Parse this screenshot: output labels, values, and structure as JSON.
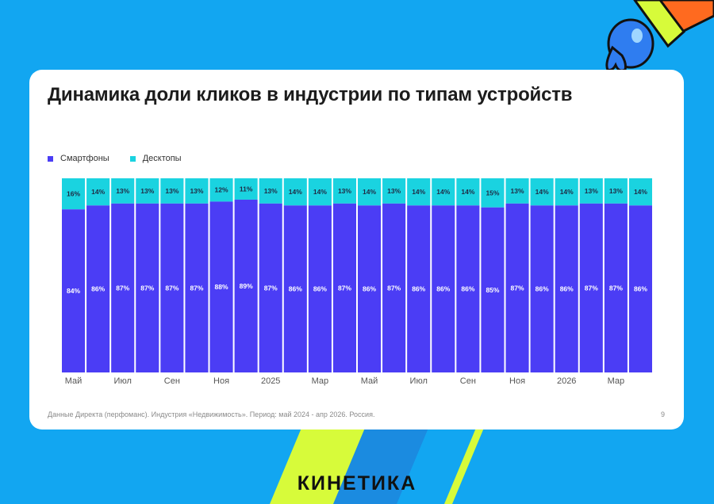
{
  "slide": {
    "title": "Динамика доли кликов в индустрии по типам устройств",
    "footnote": "Данные Директа (перфоманс). Индустрия «Недвижимость». Период: май 2024 - апр 2026. Россия.",
    "page_number": "9",
    "brand": "КИНЕТИКА"
  },
  "colors": {
    "smartphones": "#4b3df5",
    "desktops": "#1ad3e0",
    "background": "#12a6f1",
    "accent_lime": "#d7fb3a"
  },
  "chart_data": {
    "type": "bar",
    "stacked": true,
    "title": "Динамика доли кликов в индустрии по типам устройств",
    "xlabel": "",
    "ylabel": "",
    "ylim": [
      0,
      100
    ],
    "grid": false,
    "legend_position": "top-left",
    "tick_labels": [
      "Май",
      "",
      "Июл",
      "",
      "Сен",
      "",
      "Ноя",
      "",
      "2025",
      "",
      "Мар",
      "",
      "Май",
      "",
      "Июл",
      "",
      "Сен",
      "",
      "Ноя",
      "",
      "2026",
      "",
      "Мар",
      ""
    ],
    "series": [
      {
        "name": "Смартфоны",
        "color": "#4b3df5",
        "values": [
          84,
          86,
          87,
          87,
          87,
          87,
          88,
          89,
          87,
          86,
          86,
          87,
          86,
          87,
          86,
          86,
          86,
          85,
          87,
          86,
          86,
          87,
          87,
          86
        ]
      },
      {
        "name": "Десктопы",
        "color": "#1ad3e0",
        "values": [
          16,
          14,
          13,
          13,
          13,
          13,
          12,
          11,
          13,
          14,
          14,
          13,
          14,
          13,
          14,
          14,
          14,
          15,
          13,
          14,
          14,
          13,
          13,
          14
        ]
      }
    ]
  }
}
